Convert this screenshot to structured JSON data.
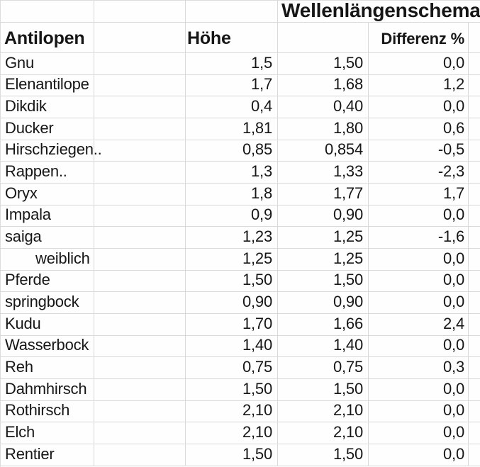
{
  "sheet": {
    "title": "Wellenlängenschema",
    "headers": {
      "animal": "Antilopen",
      "height": "Höhe",
      "difference": "Differenz %"
    },
    "gridline_color": "#d9d9d9",
    "rows": [
      {
        "name": "Gnu",
        "hoehe": "1,5",
        "soll": "1,50",
        "diff": "0,0"
      },
      {
        "name": "Elenantilope",
        "hoehe": "1,7",
        "soll": "1,68",
        "diff": "1,2"
      },
      {
        "name": "Dikdik",
        "hoehe": "0,4",
        "soll": "0,40",
        "diff": "0,0"
      },
      {
        "name": "Ducker",
        "hoehe": "1,81",
        "soll": "1,80",
        "diff": "0,6"
      },
      {
        "name": "Hirschziegen..",
        "hoehe": "0,85",
        "soll": "0,854",
        "diff": "-0,5"
      },
      {
        "name": "Rappen..",
        "hoehe": "1,3",
        "soll": "1,33",
        "diff": "-2,3"
      },
      {
        "name": "Oryx",
        "hoehe": "1,8",
        "soll": "1,77",
        "diff": "1,7"
      },
      {
        "name": "Impala",
        "hoehe": "0,9",
        "soll": "0,90",
        "diff": "0,0"
      },
      {
        "name": "saiga",
        "hoehe": "1,23",
        "soll": "1,25",
        "diff": "-1,6"
      },
      {
        "name": "weiblich",
        "indent": true,
        "hoehe": "1,25",
        "soll": "1,25",
        "diff": "0,0"
      },
      {
        "name": "Pferde",
        "hoehe": "1,50",
        "soll": "1,50",
        "diff": "0,0"
      },
      {
        "name": "springbock",
        "hoehe": "0,90",
        "soll": "0,90",
        "diff": "0,0"
      },
      {
        "name": "Kudu",
        "hoehe": "1,70",
        "soll": "1,66",
        "diff": "2,4"
      },
      {
        "name": "Wasserbock",
        "hoehe": "1,40",
        "soll": "1,40",
        "diff": "0,0"
      },
      {
        "name": "Reh",
        "hoehe": "0,75",
        "soll": "0,75",
        "diff": "0,3"
      },
      {
        "name": "Dahmhirsch",
        "hoehe": "1,50",
        "soll": "1,50",
        "diff": "0,0"
      },
      {
        "name": "Rothirsch",
        "hoehe": "2,10",
        "soll": "2,10",
        "diff": "0,0"
      },
      {
        "name": "Elch",
        "hoehe": "2,10",
        "soll": "2,10",
        "diff": "0,0"
      },
      {
        "name": "Rentier",
        "hoehe": "1,50",
        "soll": "1,50",
        "diff": "0,0"
      }
    ]
  }
}
